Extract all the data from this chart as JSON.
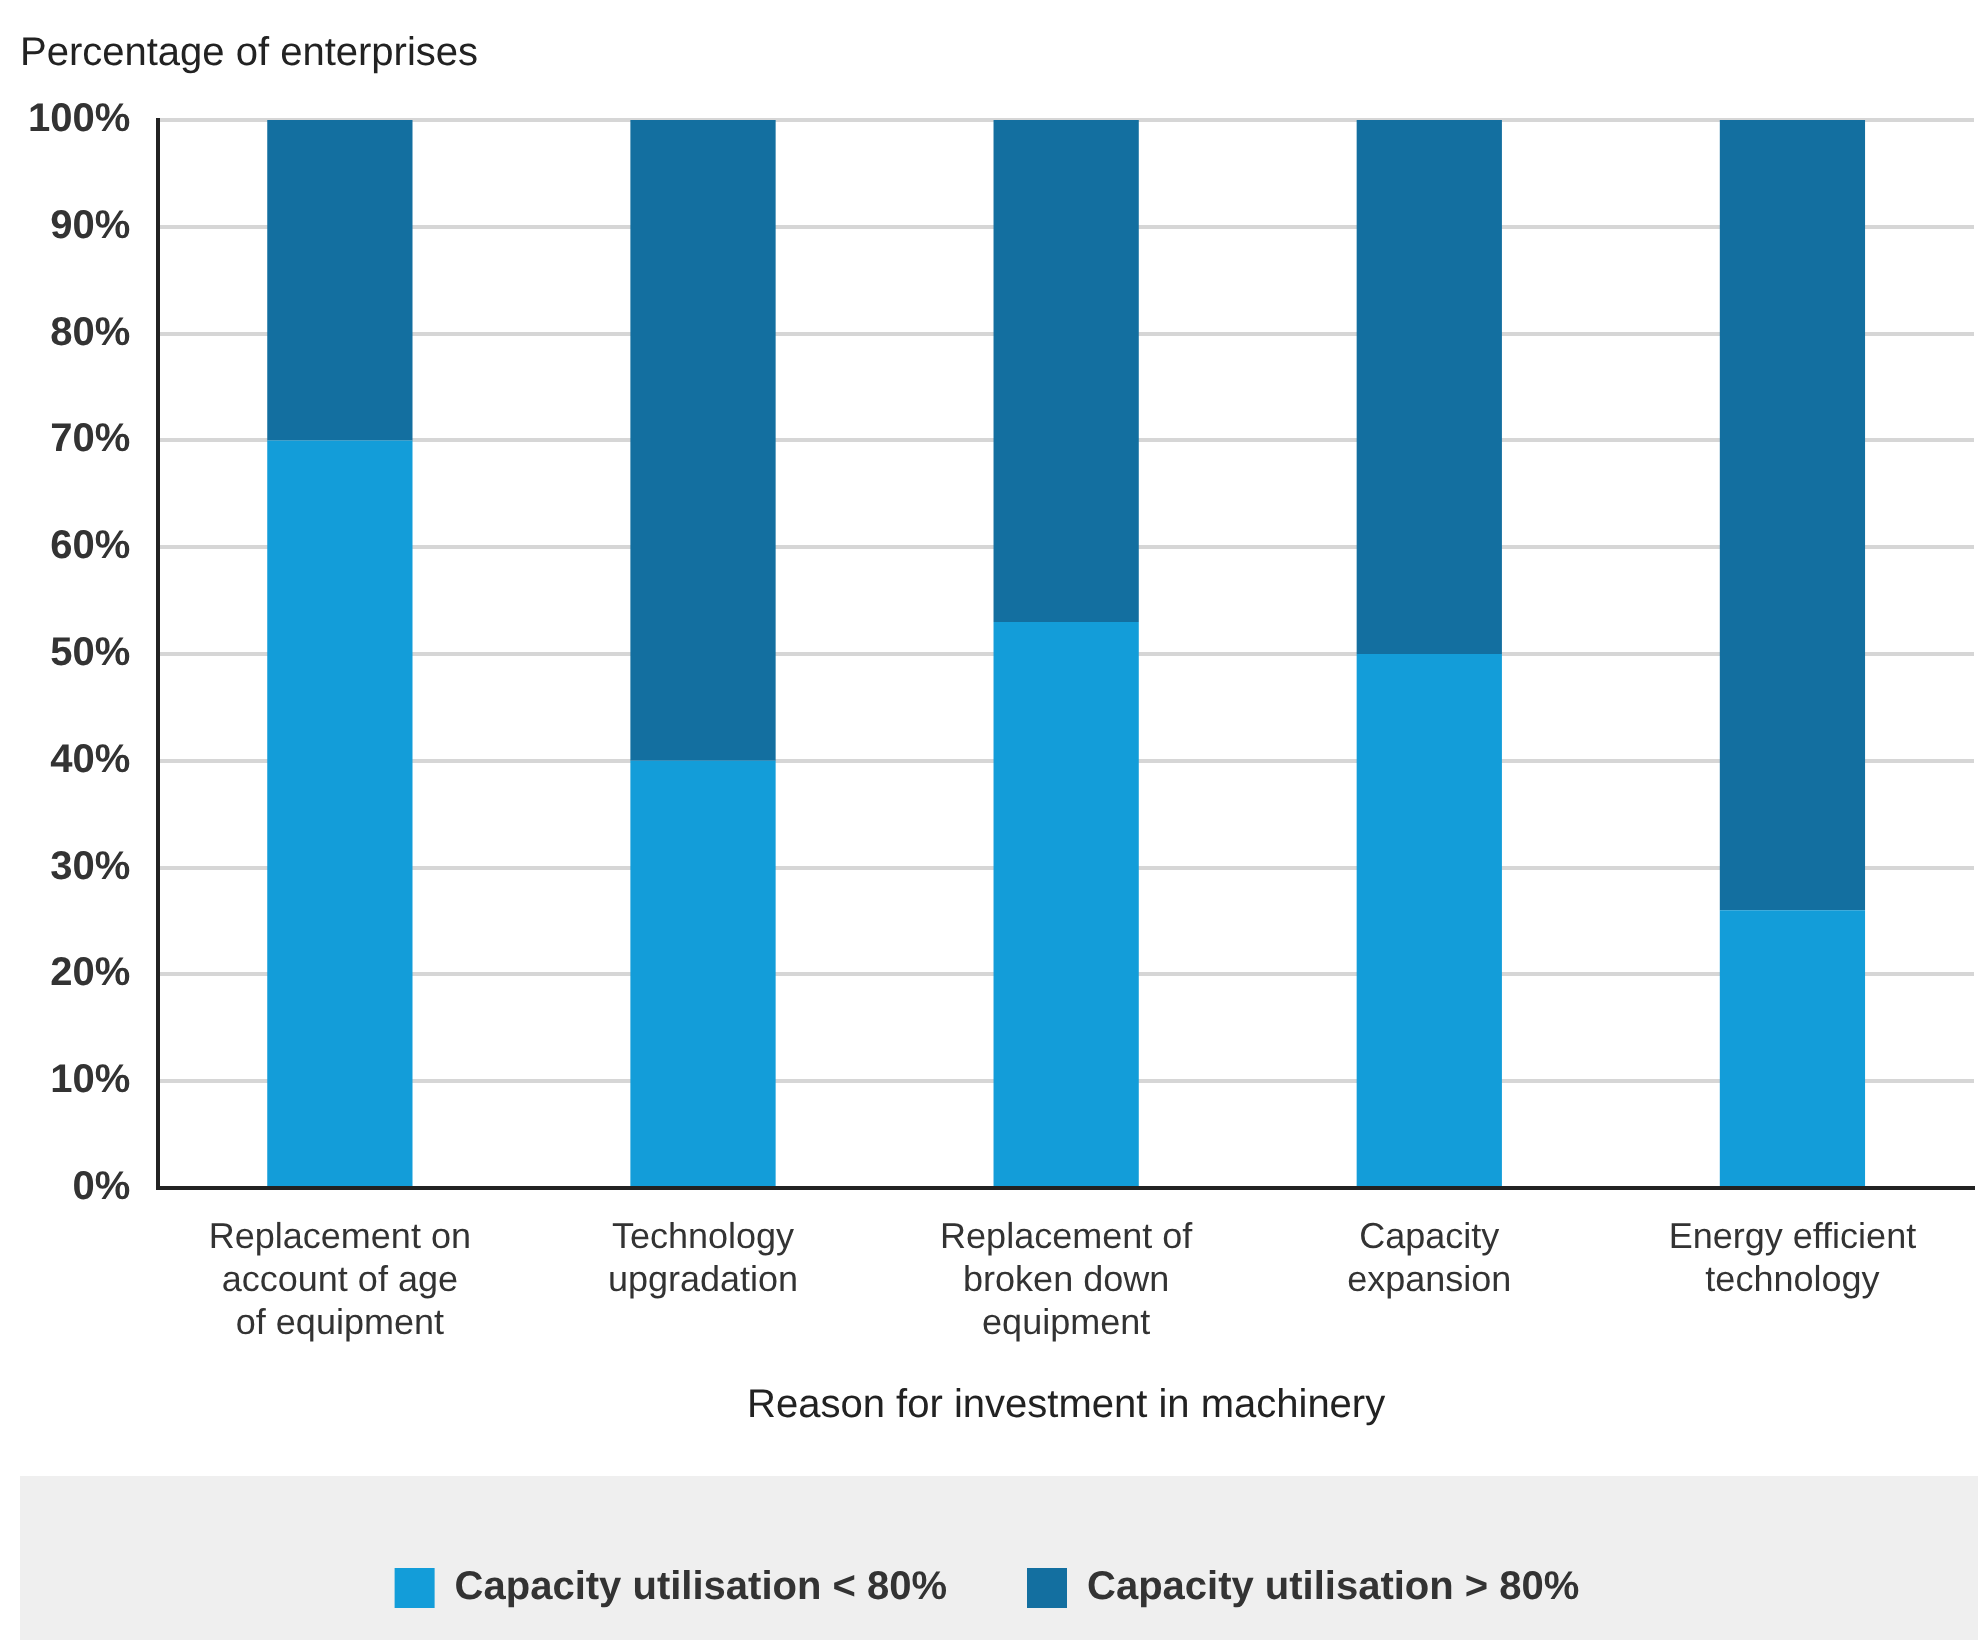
{
  "chart_data": {
    "type": "bar",
    "stacked": true,
    "ylabel": "Percentage of enterprises",
    "xlabel": "Reason for investment in machinery",
    "categories": [
      "Replacement on account of age of equipment",
      "Technology upgradation",
      "Replacement of broken down equipment",
      "Capacity expansion",
      "Energy efficient technology"
    ],
    "series": [
      {
        "name": "Capacity utilisation < 80%",
        "color": "#139dd9",
        "values": [
          70,
          40,
          53,
          50,
          26
        ]
      },
      {
        "name": "Capacity utilisation > 80%",
        "color": "#136fa0",
        "values": [
          30,
          60,
          47,
          50,
          74
        ]
      }
    ],
    "ylim": [
      0,
      100
    ],
    "yticks": [
      {
        "value": 0,
        "label": "0%"
      },
      {
        "value": 10,
        "label": "10%"
      },
      {
        "value": 20,
        "label": "20%"
      },
      {
        "value": 30,
        "label": "30%"
      },
      {
        "value": 40,
        "label": "40%"
      },
      {
        "value": 50,
        "label": "50%"
      },
      {
        "value": 60,
        "label": "60%"
      },
      {
        "value": 70,
        "label": "70%"
      },
      {
        "value": 80,
        "label": "80%"
      },
      {
        "value": 90,
        "label": "90%"
      },
      {
        "value": 100,
        "label": "100%"
      }
    ],
    "grid": "y",
    "legend": "bottom"
  }
}
